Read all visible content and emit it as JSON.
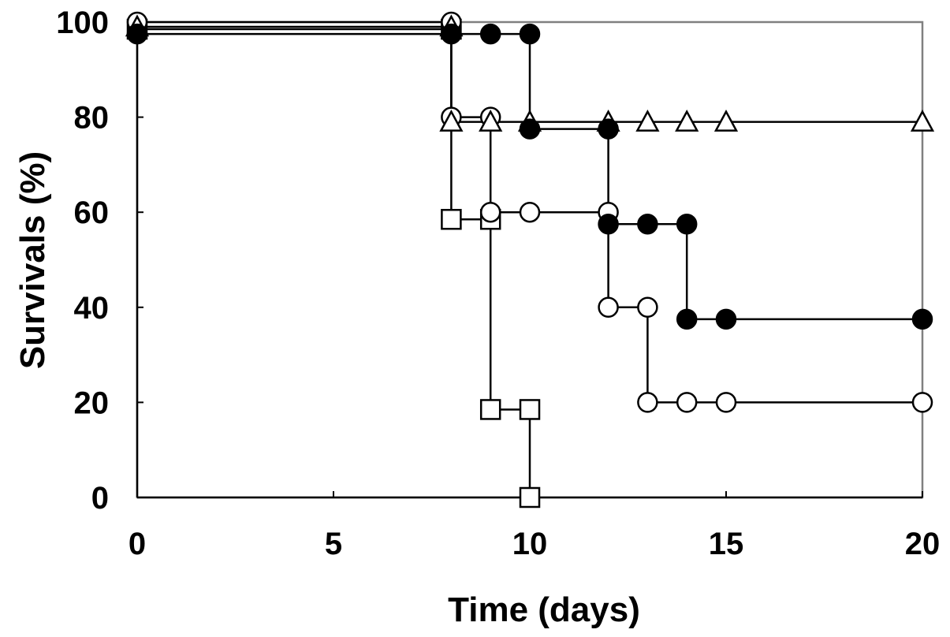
{
  "chart_data": {
    "type": "line",
    "title": "",
    "xlabel": "Time (days)",
    "ylabel": "Survivals (%)",
    "xlim": [
      0,
      20
    ],
    "ylim": [
      0,
      100
    ],
    "xticks": [
      0,
      5,
      10,
      15,
      20
    ],
    "yticks": [
      0,
      20,
      40,
      60,
      80,
      100
    ],
    "grid": false,
    "series": [
      {
        "marker": "filled-circle",
        "color": "#000000",
        "points": [
          [
            0,
            97.5
          ],
          [
            8,
            97.5
          ],
          [
            9,
            97.5
          ],
          [
            10,
            97.5
          ],
          [
            10,
            77.5
          ],
          [
            12,
            77.5
          ],
          [
            12,
            57.5
          ],
          [
            13,
            57.5
          ],
          [
            14,
            57.5
          ],
          [
            14,
            37.5
          ],
          [
            15,
            37.5
          ],
          [
            20,
            37.5
          ]
        ]
      },
      {
        "marker": "open-circle",
        "color": "#000000",
        "points": [
          [
            0,
            100
          ],
          [
            8,
            100
          ],
          [
            8,
            80
          ],
          [
            9,
            80
          ],
          [
            9,
            60
          ],
          [
            10,
            60
          ],
          [
            12,
            60
          ],
          [
            12,
            40
          ],
          [
            13,
            40
          ],
          [
            13,
            20
          ],
          [
            14,
            20
          ],
          [
            15,
            20
          ],
          [
            20,
            20
          ]
        ]
      },
      {
        "marker": "open-triangle",
        "color": "#000000",
        "points": [
          [
            0,
            99
          ],
          [
            8,
            99
          ],
          [
            8,
            79
          ],
          [
            9,
            79
          ],
          [
            10,
            79
          ],
          [
            12,
            79
          ],
          [
            13,
            79
          ],
          [
            14,
            79
          ],
          [
            15,
            79
          ],
          [
            20,
            79
          ]
        ]
      },
      {
        "marker": "open-square",
        "color": "#000000",
        "points": [
          [
            0,
            98.5
          ],
          [
            8,
            98.5
          ],
          [
            8,
            58.5
          ],
          [
            9,
            58.5
          ],
          [
            9,
            18.5
          ],
          [
            10,
            18.5
          ],
          [
            10,
            0
          ]
        ]
      }
    ]
  }
}
